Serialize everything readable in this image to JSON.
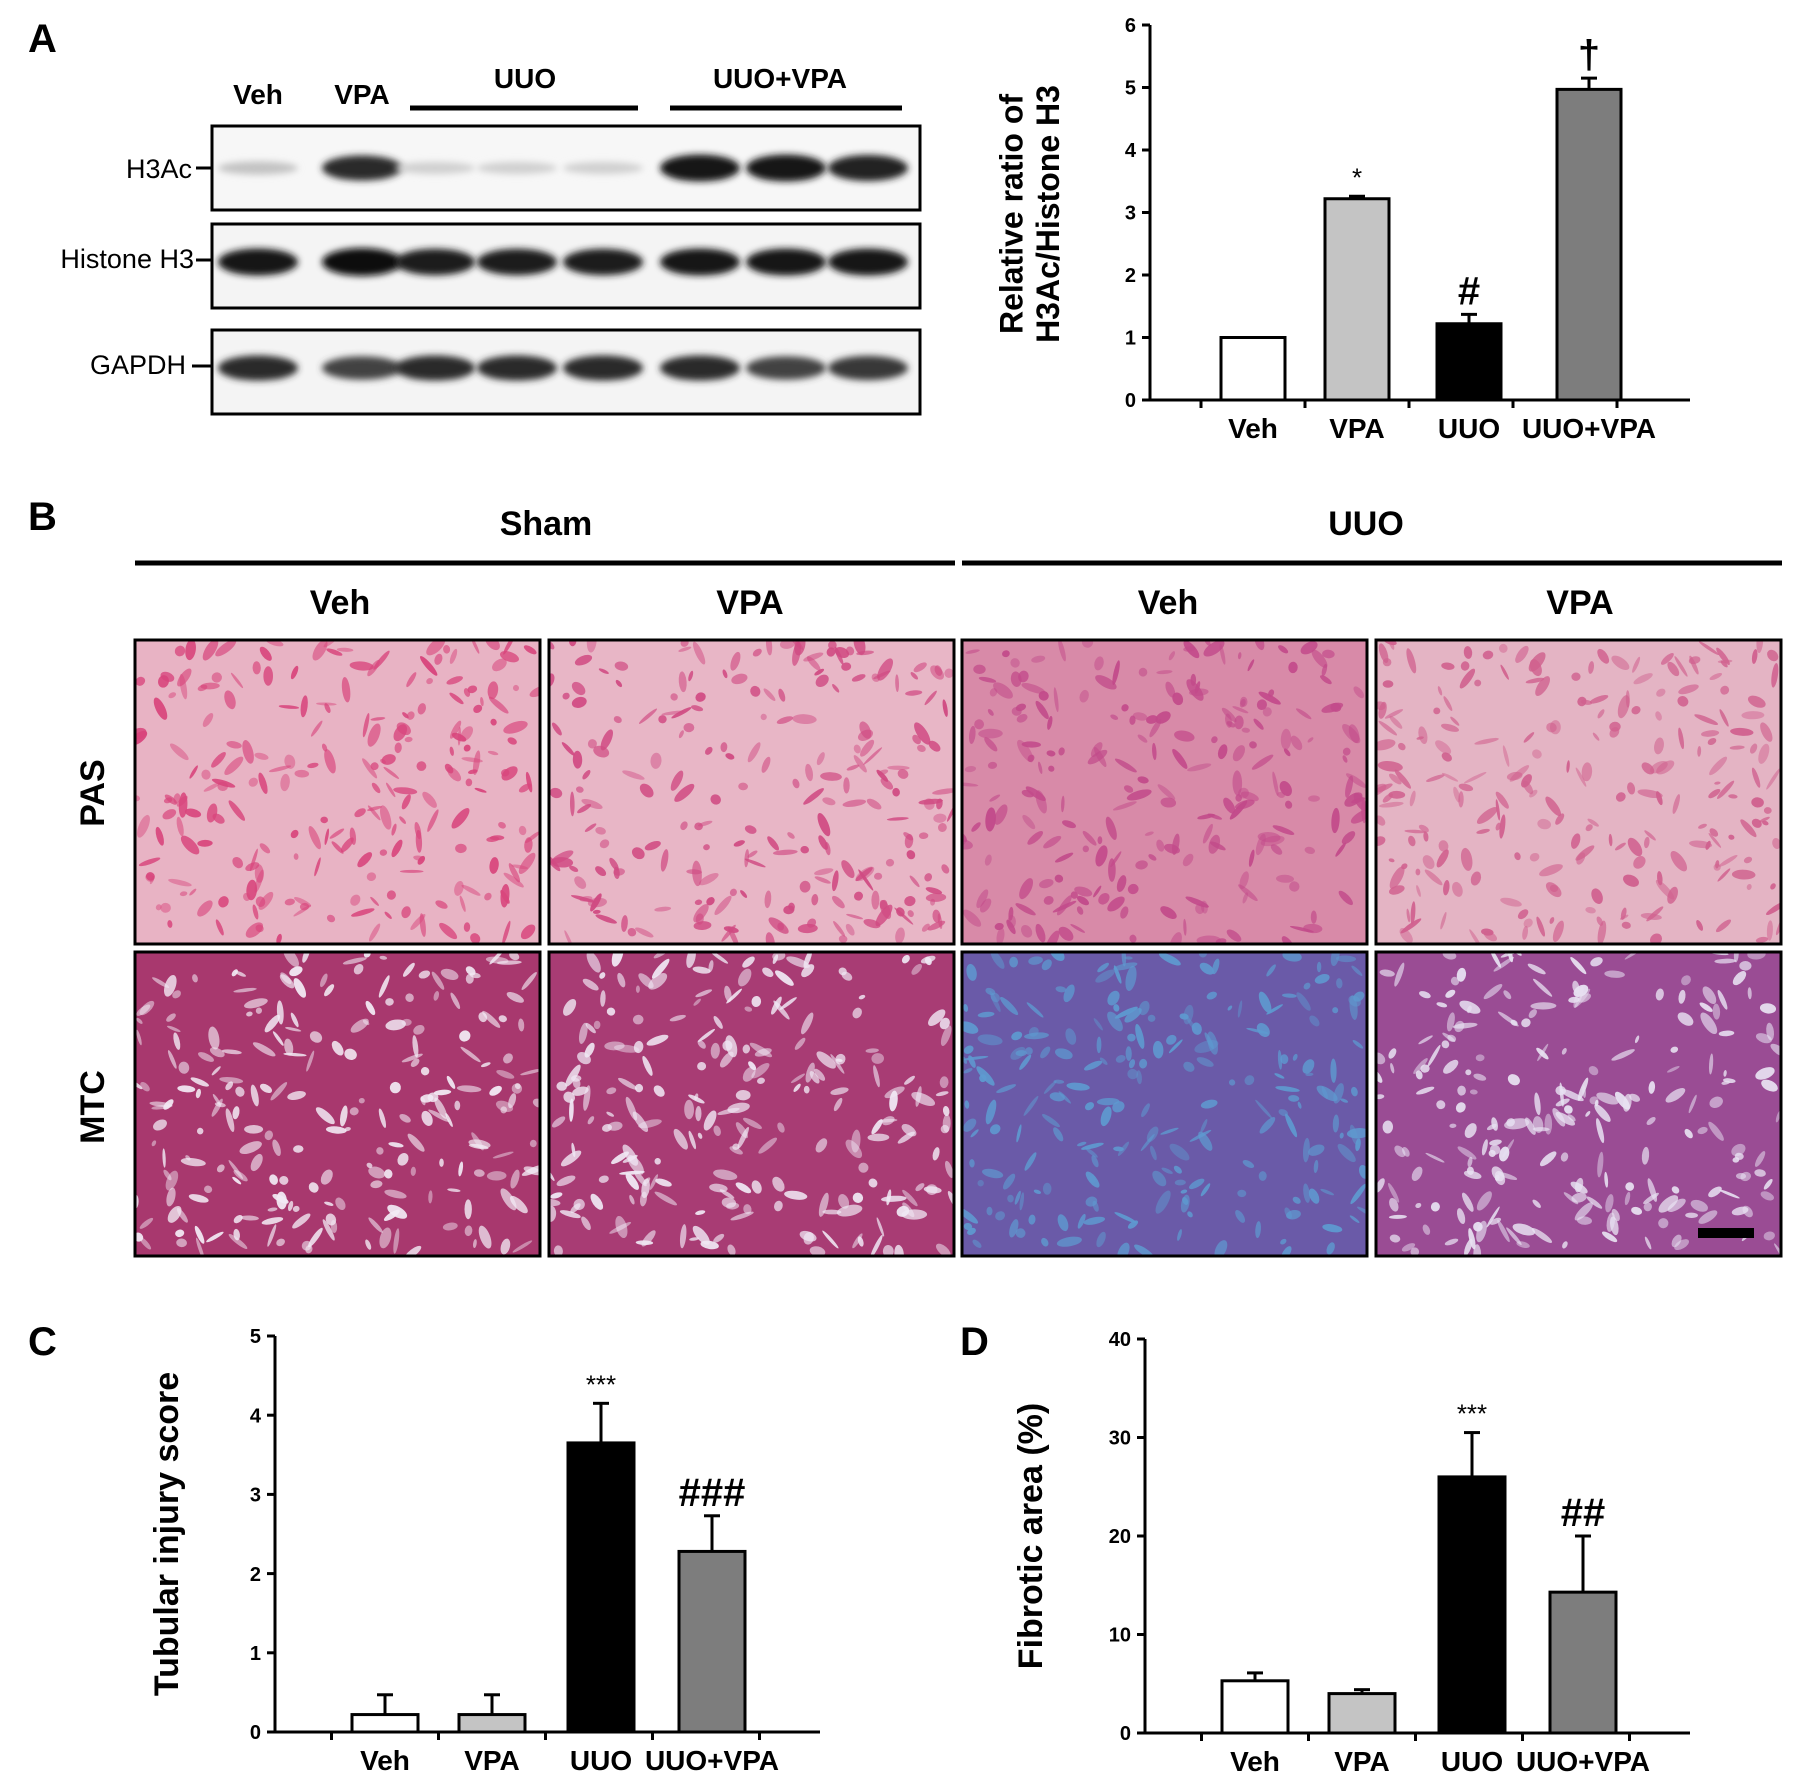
{
  "panels": {
    "A": {
      "label": "A",
      "blot": {
        "groups": [
          "Veh",
          "VPA",
          "UUO",
          "UUO+VPA"
        ],
        "proteins": [
          "H3Ac",
          "Histone H3",
          "GAPDH"
        ],
        "lane_intensity": {
          "H3Ac": [
            0.18,
            0.85,
            0.12,
            0.12,
            0.12,
            0.95,
            0.95,
            0.9
          ],
          "Histone H3": [
            0.95,
            1.0,
            0.92,
            0.92,
            0.92,
            0.95,
            0.95,
            0.95
          ],
          "GAPDH": [
            0.85,
            0.75,
            0.85,
            0.85,
            0.85,
            0.85,
            0.75,
            0.8
          ]
        }
      }
    },
    "B": {
      "label": "B",
      "conditions": [
        "Sham",
        "UUO"
      ],
      "treatments": [
        "Veh",
        "VPA",
        "Veh",
        "VPA"
      ],
      "stains": [
        "PAS",
        "MTC"
      ],
      "tissue_colors": {
        "PAS": {
          "bases": [
            "#e8b3c4",
            "#e8b6c6",
            "#d88aa8",
            "#e4b4c4"
          ],
          "marks": [
            "#d8457c",
            "#d04a82",
            "#c24a8a",
            "#d0608e"
          ]
        },
        "MTC": {
          "bases": [
            "#a8386e",
            "#a83c74",
            "#6a5aa8",
            "#9a4c94"
          ],
          "marks": [
            "#f2eaf4",
            "#f0e8f4",
            "#5e9ad0",
            "#e8e2f2"
          ]
        }
      }
    }
  },
  "chart_data": [
    {
      "panel": "A",
      "type": "bar",
      "categories": [
        "Veh",
        "VPA",
        "UUO",
        "UUO+VPA"
      ],
      "values": [
        1.0,
        3.22,
        1.22,
        4.97
      ],
      "errors": [
        0,
        0.04,
        0.15,
        0.18
      ],
      "ylabel": "Relative ratio of H3Ac/Histone H3",
      "ylim": [
        0,
        6
      ],
      "yticks": [
        0,
        1,
        2,
        3,
        4,
        5,
        6
      ],
      "significance": [
        "",
        "*",
        "#",
        "†"
      ],
      "bar_colors": [
        "#ffffff",
        "#c4c4c4",
        "#000000",
        "#7d7d7d"
      ]
    },
    {
      "panel": "C",
      "type": "bar",
      "categories": [
        "Veh",
        "VPA",
        "UUO",
        "UUO+VPA"
      ],
      "values": [
        0.22,
        0.22,
        3.65,
        2.28
      ],
      "errors": [
        0.25,
        0.25,
        0.5,
        0.45
      ],
      "ylabel": "Tubular injury score",
      "ylim": [
        0,
        5
      ],
      "yticks": [
        0,
        1,
        2,
        3,
        4,
        5
      ],
      "significance": [
        "",
        "",
        "***",
        "###"
      ],
      "bar_colors": [
        "#ffffff",
        "#c4c4c4",
        "#000000",
        "#7d7d7d"
      ]
    },
    {
      "panel": "D",
      "type": "bar",
      "categories": [
        "Veh",
        "VPA",
        "UUO",
        "UUO+VPA"
      ],
      "values": [
        5.3,
        4.0,
        26.0,
        14.3
      ],
      "errors": [
        0.8,
        0.4,
        4.5,
        5.7
      ],
      "ylabel": "Fibrotic area (%)",
      "ylim": [
        0,
        40
      ],
      "yticks": [
        0,
        10,
        20,
        30,
        40
      ],
      "significance": [
        "",
        "",
        "***",
        "##"
      ],
      "bar_colors": [
        "#ffffff",
        "#c4c4c4",
        "#000000",
        "#7d7d7d"
      ]
    }
  ]
}
